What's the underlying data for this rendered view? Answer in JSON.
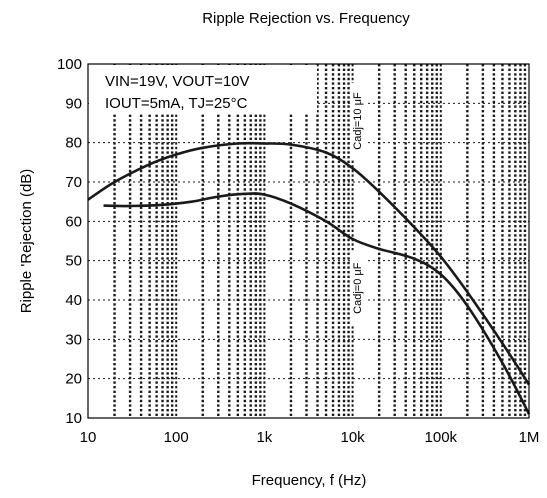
{
  "chart_data": {
    "type": "line",
    "title": "Ripple Rejection vs. Frequency",
    "xlabel": "Frequency, f (Hz)",
    "ylabel": "Ripple 'Rejection (dB)",
    "xscale": "log",
    "xlim": [
      10,
      1000000
    ],
    "ylim": [
      10,
      100
    ],
    "xticks": [
      10,
      100,
      1000,
      10000,
      100000,
      1000000
    ],
    "xtick_labels": [
      "10",
      "100",
      "1k",
      "10k",
      "100k",
      "1M"
    ],
    "yticks": [
      10,
      20,
      30,
      40,
      50,
      60,
      70,
      80,
      90,
      100
    ],
    "ytick_labels": [
      "10",
      "20",
      "30",
      "40",
      "50",
      "60",
      "70",
      "80",
      "90",
      "100"
    ],
    "grid": true,
    "annotations": {
      "conditions_line1": "VIN=19V, VOUT=10V",
      "conditions_line2": "IOUT=5mA, TJ=25°C"
    },
    "series": [
      {
        "name": "Cadj=10 μF",
        "x": [
          10,
          20,
          50,
          100,
          200,
          500,
          1000,
          2000,
          5000,
          10000,
          20000,
          50000,
          100000,
          200000,
          500000,
          1000000
        ],
        "y": [
          65.5,
          70,
          74.5,
          77,
          78.7,
          79.8,
          79.8,
          79.5,
          77.5,
          73.5,
          67.5,
          58.5,
          51,
          42,
          29,
          18.5
        ]
      },
      {
        "name": "Cadj=0 μF",
        "x": [
          15,
          30,
          70,
          150,
          300,
          600,
          1000,
          2000,
          5000,
          10000,
          20000,
          50000,
          100000,
          200000,
          500000,
          1000000
        ],
        "y": [
          64,
          63.9,
          64.2,
          65,
          66.3,
          67,
          66.8,
          64.5,
          60,
          55.5,
          53,
          50.5,
          46.5,
          38.5,
          24,
          11
        ]
      }
    ],
    "colors": {
      "line": "#1a1a1a",
      "grid": "#1a1a1a",
      "background": "#ffffff"
    }
  }
}
